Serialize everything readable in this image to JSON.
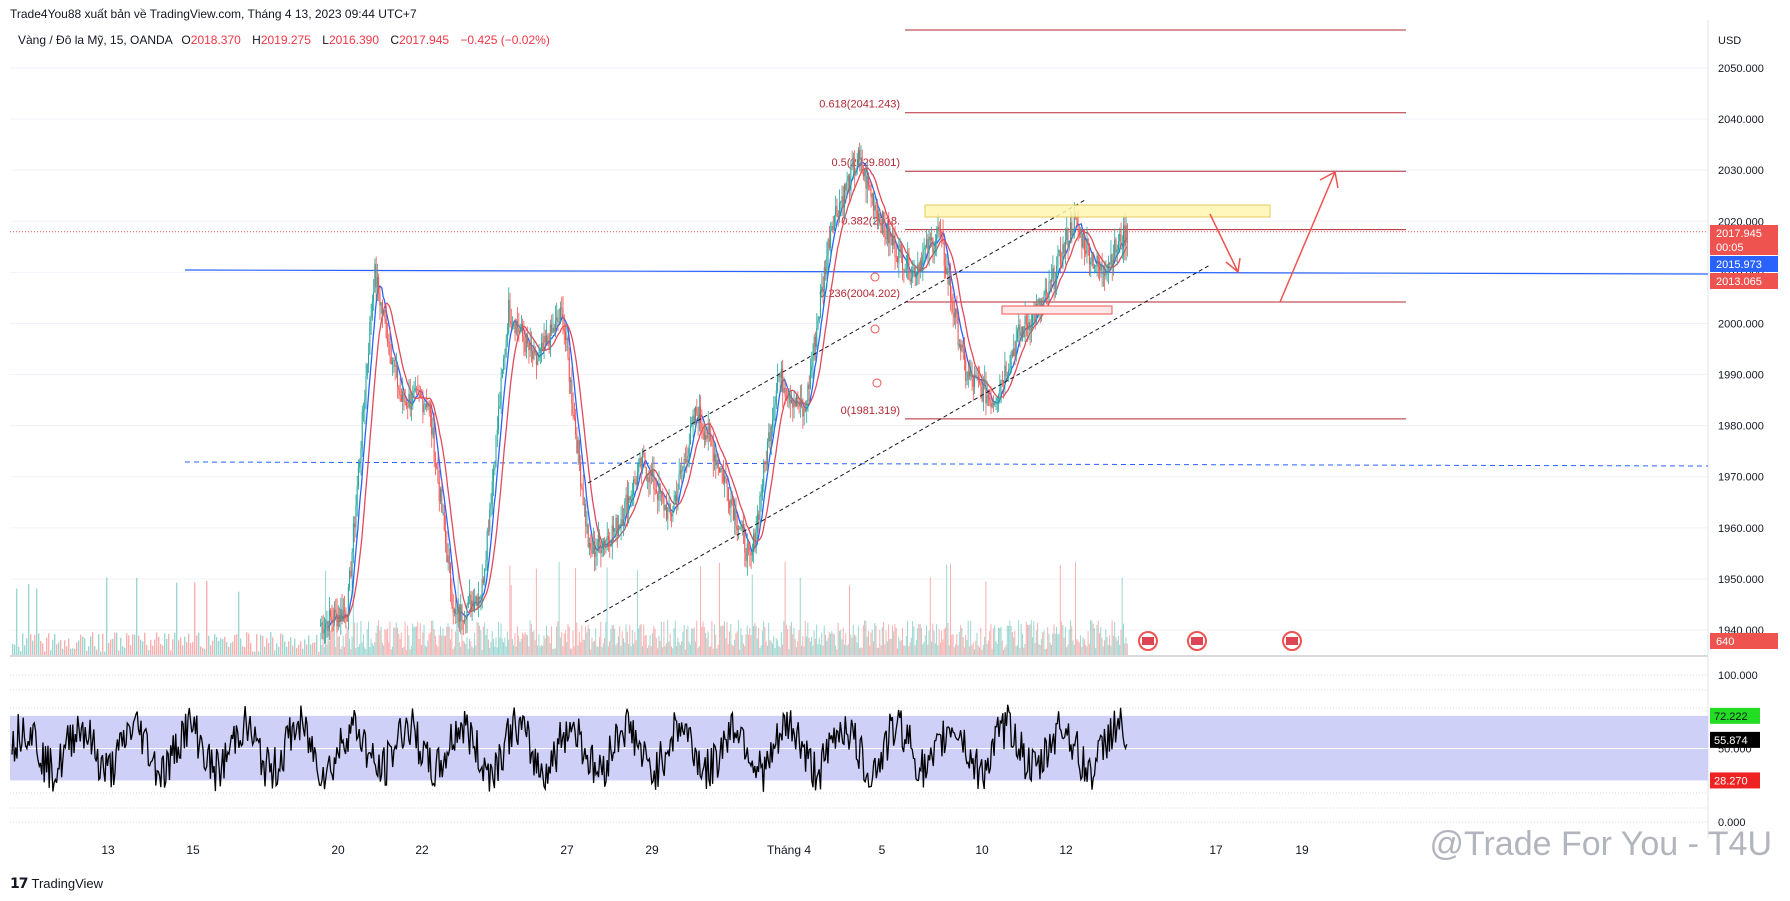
{
  "header": {
    "publisher_line": "Trade4You88 xuất bản về TradingView.com, Tháng 4 13, 2023 09:44 UTC+7"
  },
  "symbol": {
    "name": "Vàng / Đô la Mỹ, 15, OANDA",
    "o_label": "O",
    "o_value": "2018.370",
    "h_label": "H",
    "h_value": "2019.275",
    "l_label": "L",
    "l_value": "2016.390",
    "c_label": "C",
    "c_value": "2017.945",
    "change": "−0.425 (−0.02%)"
  },
  "colors": {
    "up": "#26a69a",
    "down": "#ef5350",
    "fib": "#b22833",
    "blue_line": "#2962ff",
    "ma_fast": "#2962ff",
    "ma_slow": "#e04a5a",
    "rsi_band": "#c7c8f7",
    "rsi_line": "#000000"
  },
  "chart_data": [
    {
      "type": "candlestick",
      "title": "",
      "currency": "USD",
      "y_ticks": [
        "2050.000",
        "2040.000",
        "2030.000",
        "2020.000",
        "2010.000",
        "2000.000",
        "1990.000",
        "1980.000",
        "1970.000",
        "1960.000",
        "1950.000",
        "1940.000"
      ],
      "ylim": [
        1940,
        2060
      ],
      "x_ticks": [
        "13",
        "15",
        "20",
        "22",
        "27",
        "29",
        "Tháng 4",
        "5",
        "10",
        "12",
        "17",
        "19"
      ],
      "price_key_points": [
        {
          "date": "15",
          "close": 1941
        },
        {
          "date": "19",
          "close": 1944
        },
        {
          "date": "20",
          "close": 2010
        },
        {
          "date": "20",
          "close": 1985
        },
        {
          "date": "21",
          "close": 1985
        },
        {
          "date": "22",
          "close": 1942
        },
        {
          "date": "23",
          "close": 1948
        },
        {
          "date": "24",
          "close": 2003
        },
        {
          "date": "25",
          "close": 1992
        },
        {
          "date": "26",
          "close": 2002
        },
        {
          "date": "27",
          "close": 1955
        },
        {
          "date": "28",
          "close": 1960
        },
        {
          "date": "29",
          "close": 1973
        },
        {
          "date": "30",
          "close": 1962
        },
        {
          "date": "31",
          "close": 1983
        },
        {
          "date": "Tháng 4",
          "close": 1970
        },
        {
          "date": "Tháng 4",
          "close": 1953
        },
        {
          "date": "4",
          "close": 1990
        },
        {
          "date": "5",
          "close": 1982
        },
        {
          "date": "5",
          "close": 2020
        },
        {
          "date": "6",
          "close": 2032
        },
        {
          "date": "7",
          "close": 2018
        },
        {
          "date": "8",
          "close": 2010
        },
        {
          "date": "9",
          "close": 2018
        },
        {
          "date": "10",
          "close": 1990
        },
        {
          "date": "11",
          "close": 1985
        },
        {
          "date": "11",
          "close": 1998
        },
        {
          "date": "12",
          "close": 2005
        },
        {
          "date": "12",
          "close": 2020
        },
        {
          "date": "13",
          "close": 2010
        },
        {
          "date": "13",
          "close": 2017.945
        }
      ],
      "fib_levels": [
        {
          "label": "0.618(2041.243)",
          "value": 2041.243
        },
        {
          "label": "0.5(2029.801)",
          "value": 2029.801
        },
        {
          "label": "0.382(2018.",
          "value": 2018.36
        },
        {
          "label": "0.236(2004.202)",
          "value": 2004.202
        },
        {
          "label": "0(1981.319)",
          "value": 1981.319
        }
      ],
      "price_labels": {
        "last": "2017.945",
        "countdown": "00:05",
        "blue_level": "2015.973",
        "red_level": "2013.065",
        "volume": "640"
      }
    },
    {
      "type": "line",
      "title": "",
      "y_ticks": [
        "100.000",
        "50.000",
        "0.000"
      ],
      "ylim": [
        0,
        100
      ],
      "band": [
        28.27,
        72.222
      ],
      "labels": {
        "upper": "72.222",
        "value": "55.874",
        "lower": "28.270"
      },
      "last_value": 55.874
    }
  ],
  "footer": {
    "brand": "TradingView"
  },
  "watermark": "@Trade For You - T4U"
}
